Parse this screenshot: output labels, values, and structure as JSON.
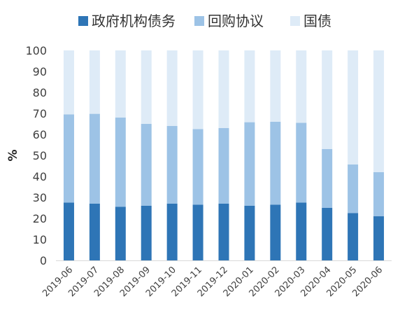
{
  "chart_data": {
    "type": "bar",
    "stacked": true,
    "categories": [
      "2019-06",
      "2019-07",
      "2019-08",
      "2019-09",
      "2019-10",
      "2019-11",
      "2019-12",
      "2020-01",
      "2020-02",
      "2020-03",
      "2020-04",
      "2020-05",
      "2020-06"
    ],
    "series": [
      {
        "name": "政府机构债务",
        "color": "#2e75b6",
        "values": [
          27.5,
          27,
          25.5,
          26,
          27,
          26.5,
          27,
          26,
          26.5,
          27.5,
          25,
          22.5,
          21
        ]
      },
      {
        "name": "回购协议",
        "color": "#9dc3e6",
        "values": [
          42,
          42.8,
          42.5,
          39,
          37,
          36,
          36,
          39.8,
          39.5,
          38,
          28,
          23.2,
          21
        ]
      },
      {
        "name": "国债",
        "color": "#deebf7",
        "values": [
          30.5,
          30.2,
          32,
          35,
          36,
          37.5,
          37,
          34.2,
          34,
          34.5,
          47,
          54.3,
          58
        ]
      }
    ],
    "ylabel": "%",
    "xlabel": "",
    "ylim": [
      0,
      100
    ],
    "yticks": [
      "0",
      "10",
      "20",
      "30",
      "40",
      "50",
      "60",
      "70",
      "80",
      "90",
      "100"
    ],
    "legend_position": "top",
    "grid": false
  }
}
